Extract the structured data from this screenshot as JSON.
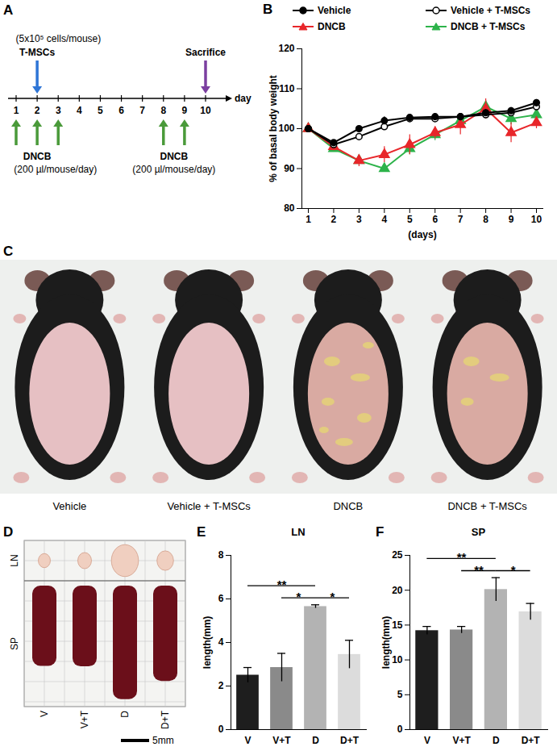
{
  "panel_labels": [
    "A",
    "B",
    "C",
    "D",
    "E",
    "F"
  ],
  "timeline": {
    "x_label": "day",
    "days": [
      1,
      2,
      3,
      4,
      5,
      6,
      7,
      8,
      9,
      10
    ],
    "cells": {
      "label": "T-MSCs",
      "dose": "(5x10⁵ cells/mouse)",
      "day": 2
    },
    "dncb": {
      "label": "DNCB",
      "dose": "(200 µl/mouse/day)",
      "groups": [
        [
          1,
          2,
          3
        ],
        [
          8,
          9
        ]
      ]
    },
    "sacrifice": {
      "label": "Sacrifice",
      "day": 10
    }
  },
  "photo_mice": {
    "labels": [
      "Vehicle",
      "Vehicle + T-MSCs",
      "DNCB",
      "DNCB + T-MSCs"
    ]
  },
  "photo_organs": {
    "rows": [
      "LN",
      "SP"
    ],
    "columns": [
      "V",
      "V+T",
      "D",
      "D+T"
    ],
    "scale_bar": {
      "value": 5,
      "label": "5mm"
    }
  },
  "chart_data": [
    {
      "type": "line",
      "x_label": "(days)",
      "y_label": "% of basal body weight",
      "x": [
        1,
        2,
        3,
        4,
        5,
        6,
        7,
        8,
        9,
        10
      ],
      "xlim": [
        1,
        10
      ],
      "xticks": [
        1,
        2,
        3,
        4,
        5,
        6,
        7,
        8,
        9,
        10
      ],
      "ylim": [
        80,
        120
      ],
      "yticks": [
        80,
        90,
        100,
        110,
        120
      ],
      "legend": "top",
      "series": [
        {
          "name": "Vehicle",
          "color": "#000000",
          "marker": "circle",
          "values": [
            100,
            96.5,
            100,
            102,
            102.8,
            103,
            103,
            104,
            104.5,
            106.5
          ],
          "errors": [
            0,
            0.5,
            0.3,
            1.0,
            0.4,
            0.5,
            0.5,
            0.8,
            0.8,
            0.8
          ]
        },
        {
          "name": "Vehicle + T-MSCs",
          "color": "#000000",
          "marker": "circle-open",
          "values": [
            100,
            96,
            98,
            100.5,
            102.5,
            102.5,
            103,
            103.5,
            104,
            105.5
          ],
          "errors": [
            0,
            0.5,
            0.5,
            0.5,
            0.4,
            0.5,
            0.6,
            0.8,
            0.8,
            0.8
          ]
        },
        {
          "name": "DNCB",
          "color": "#e8262a",
          "marker": "triangle",
          "values": [
            100,
            95.5,
            92,
            93.5,
            96,
            99,
            101,
            105,
            99,
            101.5
          ],
          "errors": [
            0,
            1.0,
            1.5,
            2.0,
            2.5,
            1.5,
            2.5,
            2.5,
            2.5,
            1.5
          ]
        },
        {
          "name": "DNCB + T-MSCs",
          "color": "#2db34a",
          "marker": "triangle",
          "values": [
            100,
            95,
            92,
            90,
            95,
            98.5,
            102,
            105.5,
            102.5,
            103.5
          ],
          "errors": [
            0,
            0.8,
            1.0,
            0.8,
            1.5,
            1.5,
            1.0,
            1.5,
            1.5,
            1.5
          ]
        }
      ]
    },
    {
      "type": "bar",
      "title": "LN",
      "y_label": "length(mm)",
      "categories": [
        "V",
        "V+T",
        "D",
        "D+T"
      ],
      "values": [
        2.5,
        2.85,
        5.65,
        3.45
      ],
      "errors": [
        0.35,
        0.65,
        0.08,
        0.65
      ],
      "colors": [
        "#1e1e1e",
        "#8a8a8a",
        "#b3b3b3",
        "#dcdcdc"
      ],
      "ylim": [
        0,
        8
      ],
      "yticks": [
        0,
        2,
        4,
        6,
        8
      ],
      "annotations": [
        {
          "from": "V",
          "to": "D",
          "label": "**"
        },
        {
          "from": "V+T",
          "to": "D",
          "label": "*"
        },
        {
          "from": "D",
          "to": "D+T",
          "label": "*"
        }
      ]
    },
    {
      "type": "bar",
      "title": "SP",
      "y_label": "length(mm)",
      "categories": [
        "V",
        "V+T",
        "D",
        "D+T"
      ],
      "values": [
        14.2,
        14.3,
        20.1,
        16.9
      ],
      "errors": [
        0.6,
        0.5,
        1.7,
        1.2
      ],
      "colors": [
        "#1e1e1e",
        "#8a8a8a",
        "#b3b3b3",
        "#dcdcdc"
      ],
      "ylim": [
        0,
        25
      ],
      "yticks": [
        0,
        5,
        10,
        15,
        20,
        25
      ],
      "annotations": [
        {
          "from": "V",
          "to": "D",
          "label": "**"
        },
        {
          "from": "V+T",
          "to": "D",
          "label": "**"
        },
        {
          "from": "D",
          "to": "D+T",
          "label": "*"
        }
      ]
    }
  ]
}
